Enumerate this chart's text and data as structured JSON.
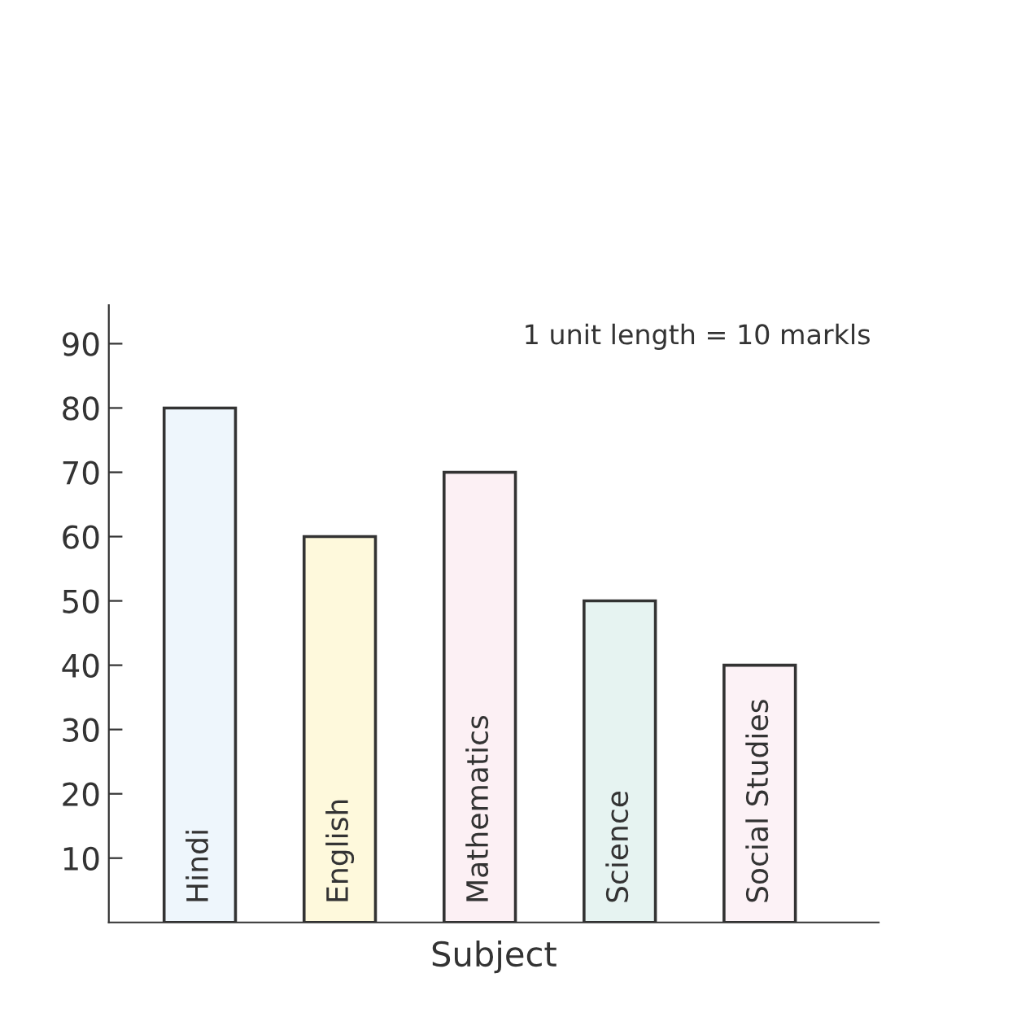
{
  "chart_data": {
    "type": "bar",
    "xlabel": "Subject",
    "categories": [
      "Hindi",
      "English",
      "Mathematics",
      "Science",
      "Social Studies"
    ],
    "values": [
      80,
      60,
      70,
      50,
      40
    ],
    "colors": [
      "#eef6fc",
      "#fef9dc",
      "#fcf0f4",
      "#e6f3f1",
      "#fcf2f6"
    ],
    "ylim": [
      0,
      96
    ],
    "yticks": [
      10,
      20,
      30,
      40,
      50,
      60,
      70,
      80,
      90
    ],
    "annotations": [
      "1 unit length = 10 markls"
    ],
    "grid": false,
    "legend": false
  }
}
